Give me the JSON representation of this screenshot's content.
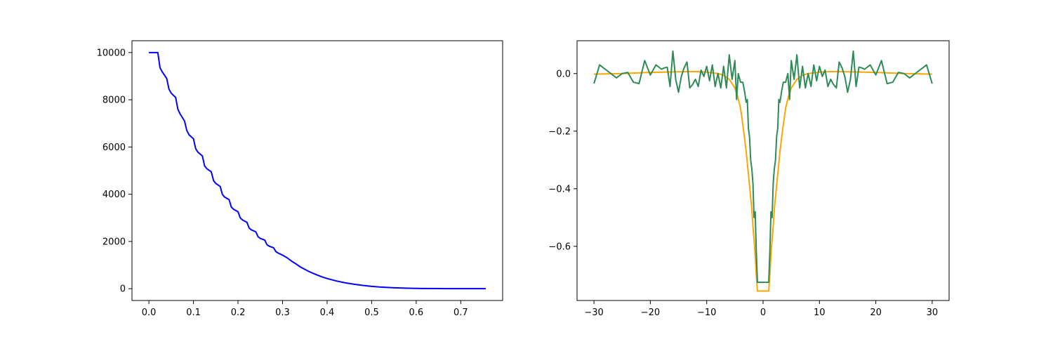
{
  "chart_data": [
    {
      "type": "line",
      "title": "",
      "xlabel": "",
      "ylabel": "",
      "xlim": [
        -0.038,
        0.794
      ],
      "ylim": [
        -500,
        10500
      ],
      "grid": false,
      "legend": "none",
      "xticks": [
        0.0,
        0.1,
        0.2,
        0.3,
        0.4,
        0.5,
        0.6,
        0.7
      ],
      "xtick_labels": [
        "0.0",
        "0.1",
        "0.2",
        "0.3",
        "0.4",
        "0.5",
        "0.6",
        "0.7"
      ],
      "yticks": [
        0,
        2000,
        4000,
        6000,
        8000,
        10000
      ],
      "ytick_labels": [
        "0",
        "2000",
        "4000",
        "6000",
        "8000",
        "10000"
      ],
      "series": [
        {
          "color": "#0000ff",
          "x": [
            0.0,
            0.02,
            0.025,
            0.03,
            0.04,
            0.045,
            0.05,
            0.06,
            0.065,
            0.07,
            0.08,
            0.085,
            0.09,
            0.1,
            0.105,
            0.11,
            0.12,
            0.125,
            0.13,
            0.14,
            0.145,
            0.15,
            0.16,
            0.165,
            0.17,
            0.18,
            0.185,
            0.19,
            0.2,
            0.205,
            0.21,
            0.22,
            0.225,
            0.23,
            0.24,
            0.245,
            0.25,
            0.26,
            0.265,
            0.27,
            0.28,
            0.285,
            0.29,
            0.3,
            0.31,
            0.32,
            0.33,
            0.34,
            0.35,
            0.36,
            0.37,
            0.38,
            0.39,
            0.4,
            0.42,
            0.44,
            0.46,
            0.48,
            0.5,
            0.52,
            0.55,
            0.58,
            0.61,
            0.65,
            0.7,
            0.756
          ],
          "y": [
            10000,
            10000,
            9350,
            9180,
            8900,
            8450,
            8280,
            8100,
            7600,
            7400,
            7100,
            6700,
            6520,
            6350,
            5930,
            5780,
            5620,
            5200,
            5080,
            4950,
            4580,
            4460,
            4330,
            3990,
            3880,
            3770,
            3460,
            3360,
            3260,
            3000,
            2910,
            2810,
            2570,
            2490,
            2410,
            2200,
            2130,
            2060,
            1860,
            1800,
            1730,
            1570,
            1510,
            1420,
            1310,
            1170,
            1050,
            920,
            820,
            720,
            640,
            560,
            490,
            430,
            330,
            250,
            190,
            140,
            100,
            70,
            40,
            20,
            10,
            4,
            1,
            0
          ]
        }
      ]
    },
    {
      "type": "line",
      "title": "",
      "xlabel": "",
      "ylabel": "",
      "xlim": [
        -33,
        33
      ],
      "ylim": [
        -0.788,
        0.114
      ],
      "grid": false,
      "legend": "none",
      "xticks": [
        -30,
        -20,
        -10,
        0,
        10,
        20,
        30
      ],
      "xtick_labels": [
        "−30",
        "−20",
        "−10",
        "0",
        "10",
        "20",
        "30"
      ],
      "yticks": [
        0.0,
        -0.2,
        -0.4,
        -0.6
      ],
      "ytick_labels": [
        "0.0",
        "−0.2",
        "−0.4",
        "−0.6"
      ],
      "series": [
        {
          "color": "#ffa500",
          "x": [
            -30,
            -25,
            -20,
            -15,
            -12,
            -10,
            -8,
            -7,
            -6,
            -5,
            -4.5,
            -4,
            -3.5,
            -3,
            -2.5,
            -2,
            -1.8,
            -1.5,
            -1.2,
            -1,
            1,
            1.2,
            1.5,
            1.8,
            2,
            2.5,
            3,
            3.5,
            4,
            4.5,
            5,
            6,
            7,
            8,
            10,
            12,
            15,
            20,
            25,
            30
          ],
          "y": [
            -0.002,
            0.0,
            0.004,
            0.006,
            0.007,
            0.005,
            0.0,
            -0.006,
            -0.02,
            -0.05,
            -0.08,
            -0.12,
            -0.19,
            -0.27,
            -0.37,
            -0.47,
            -0.53,
            -0.6,
            -0.7,
            -0.755,
            -0.755,
            -0.7,
            -0.6,
            -0.53,
            -0.47,
            -0.37,
            -0.27,
            -0.19,
            -0.12,
            -0.08,
            -0.05,
            -0.02,
            -0.006,
            0.0,
            0.005,
            0.007,
            0.006,
            0.004,
            0.0,
            -0.002
          ]
        },
        {
          "color": "#2e8b57",
          "x": [
            -30,
            -29,
            -27,
            -26,
            -25,
            -24,
            -23,
            -22,
            -21,
            -20,
            -19,
            -18,
            -17.5,
            -17,
            -16.5,
            -16,
            -15.5,
            -15,
            -14.5,
            -14,
            -13.5,
            -13,
            -12.5,
            -12,
            -11.5,
            -11,
            -10.5,
            -10,
            -9.5,
            -9,
            -8.5,
            -8,
            -7.5,
            -7,
            -6.5,
            -6,
            -5.5,
            -5,
            -4.7,
            -4.4,
            -4,
            -3.6,
            -3.3,
            -3,
            -2.8,
            -2.6,
            -2.4,
            -2.2,
            -2,
            -1.8,
            -1.6,
            -1.4,
            -1.2,
            -1,
            1,
            1.2,
            1.4,
            1.6,
            1.8,
            2,
            2.2,
            2.4,
            2.6,
            2.8,
            3,
            3.3,
            3.6,
            4,
            4.4,
            4.7,
            5,
            5.5,
            6,
            6.5,
            7,
            7.5,
            8,
            8.5,
            9,
            9.5,
            10,
            10.5,
            11,
            11.5,
            12,
            12.5,
            13,
            13.5,
            14,
            14.5,
            15,
            15.5,
            16,
            16.5,
            17,
            17.5,
            18,
            19,
            20,
            21,
            22,
            23,
            24,
            25,
            26,
            27,
            29,
            30
          ],
          "y": [
            -0.035,
            0.03,
            0.0,
            -0.015,
            0.0,
            0.004,
            -0.03,
            -0.035,
            0.045,
            -0.005,
            0.03,
            0.015,
            0.02,
            0.022,
            -0.045,
            0.078,
            -0.02,
            -0.065,
            -0.01,
            0.02,
            0.04,
            -0.05,
            -0.038,
            -0.02,
            -0.045,
            0.012,
            -0.01,
            0.025,
            -0.025,
            0.03,
            -0.045,
            0.0,
            -0.05,
            0.025,
            -0.05,
            0.065,
            -0.02,
            0.045,
            -0.09,
            0.0,
            -0.03,
            -0.03,
            -0.06,
            -0.1,
            -0.09,
            -0.19,
            -0.22,
            -0.3,
            -0.33,
            -0.38,
            -0.5,
            -0.48,
            -0.62,
            -0.725,
            -0.725,
            -0.62,
            -0.48,
            -0.5,
            -0.38,
            -0.33,
            -0.3,
            -0.22,
            -0.19,
            -0.09,
            -0.1,
            -0.06,
            -0.03,
            -0.03,
            0.0,
            -0.09,
            0.045,
            -0.02,
            0.065,
            -0.05,
            0.025,
            -0.05,
            0.0,
            -0.045,
            0.03,
            -0.025,
            0.025,
            -0.01,
            0.012,
            -0.045,
            -0.02,
            -0.038,
            -0.05,
            0.04,
            0.02,
            -0.01,
            -0.065,
            -0.02,
            0.078,
            -0.045,
            0.022,
            0.02,
            0.015,
            0.03,
            -0.005,
            0.045,
            -0.035,
            -0.03,
            0.004,
            0.0,
            -0.015,
            0.0,
            0.03,
            -0.035
          ]
        }
      ]
    }
  ]
}
